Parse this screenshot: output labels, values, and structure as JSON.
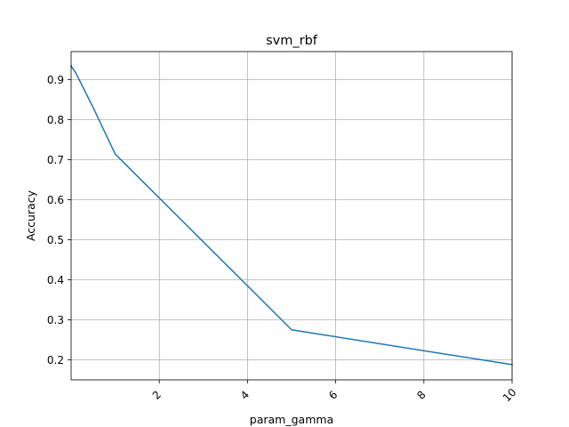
{
  "chart_data": {
    "type": "line",
    "title": "svm_rbf",
    "xlabel": "param_gamma",
    "ylabel": "Accuracy",
    "xlim": [
      0.0001,
      10
    ],
    "ylim": [
      0.15,
      0.97
    ],
    "xticks": [
      2,
      4,
      6,
      8,
      10
    ],
    "yticks": [
      0.2,
      0.3,
      0.4,
      0.5,
      0.6,
      0.7,
      0.8,
      0.9
    ],
    "grid": true,
    "series_color": "#1f77b4",
    "series": [
      {
        "x": [
          0.0001,
          0.001,
          0.01,
          0.1,
          0.5,
          1,
          5,
          10
        ],
        "y": [
          0.935,
          0.935,
          0.932,
          0.918,
          0.83,
          0.714,
          0.275,
          0.188
        ]
      }
    ]
  }
}
